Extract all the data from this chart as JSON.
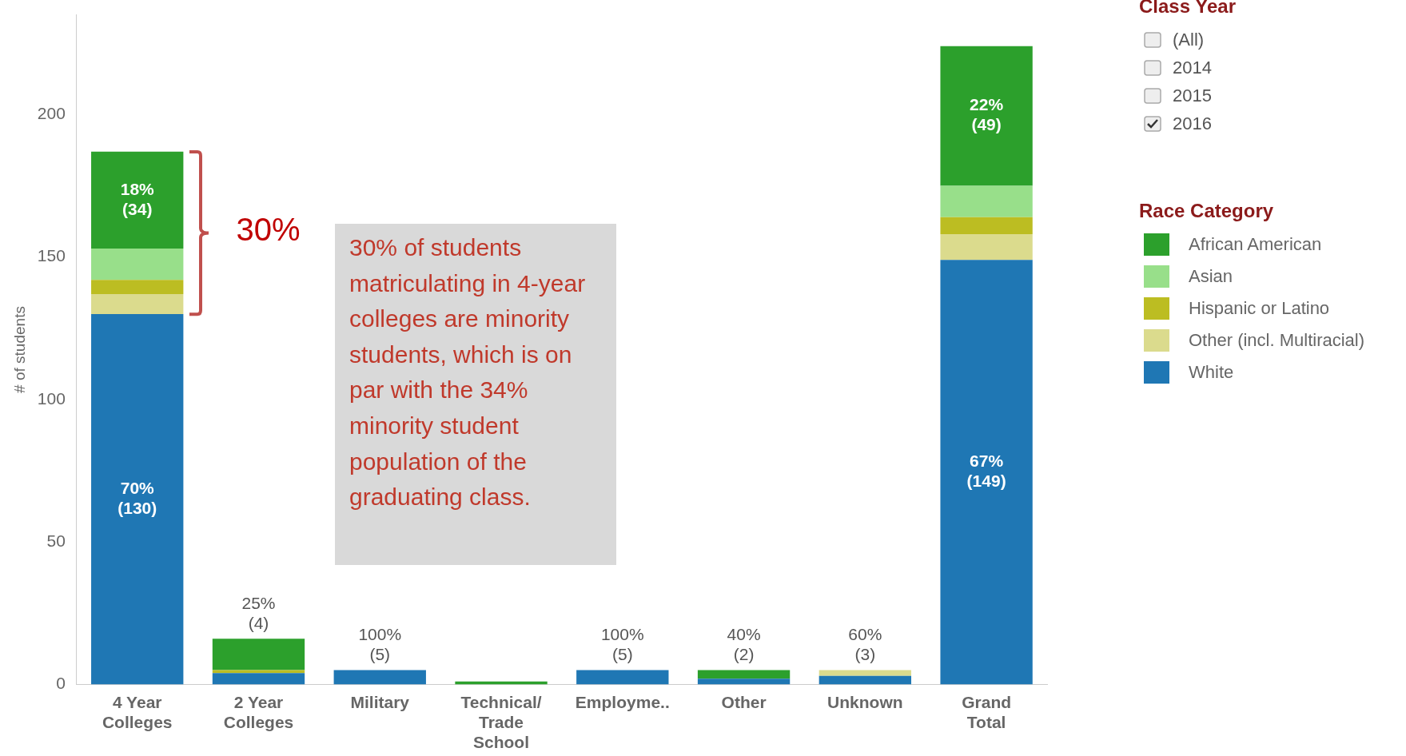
{
  "chart_data": {
    "type": "bar",
    "stacked": true,
    "categories": [
      "4 Year Colleges",
      "2 Year Colleges",
      "Military",
      "Technical/Trade School",
      "Employme..",
      "Other",
      "Unknown",
      "Grand Total"
    ],
    "series": [
      {
        "name": "White",
        "color": "#1f77b4",
        "values": [
          130,
          4,
          5,
          0,
          5,
          2,
          3,
          149
        ],
        "value_labels": [
          "70%\n(130)",
          "25%\n(4)",
          "100%\n(5)",
          null,
          "100%\n(5)",
          "40%\n(2)",
          "60%\n(3)",
          "67%\n(149)"
        ]
      },
      {
        "name": "Other (incl. Multiracial)",
        "color": "#dbdb8d",
        "values": [
          7,
          0,
          0,
          0,
          0,
          0,
          2,
          9
        ]
      },
      {
        "name": "Hispanic or Latino",
        "color": "#bcbd22",
        "values": [
          5,
          1,
          0,
          0,
          0,
          0,
          0,
          6
        ]
      },
      {
        "name": "Asian",
        "color": "#98df8a",
        "values": [
          11,
          0,
          0,
          0,
          0,
          0,
          0,
          11
        ]
      },
      {
        "name": "African American",
        "color": "#2ca02c",
        "values": [
          34,
          11,
          0,
          1,
          0,
          3,
          0,
          49
        ],
        "value_labels": [
          "18%\n(34)",
          null,
          null,
          null,
          null,
          null,
          null,
          "22%\n(49)"
        ]
      }
    ],
    "ylabel": "# of students",
    "ylim": [
      0,
      235
    ],
    "yticks": [
      0,
      50,
      100,
      150,
      200
    ],
    "legend": "right",
    "legend_title": "Race Category",
    "annotations": [
      "30%",
      "30% of students matriculating in 4-year colleges are minority students, which is on par with the 34% minority student population of the graduating class.",
      "Class Year",
      "(All)",
      "2014",
      "2015",
      "2016"
    ]
  }
}
